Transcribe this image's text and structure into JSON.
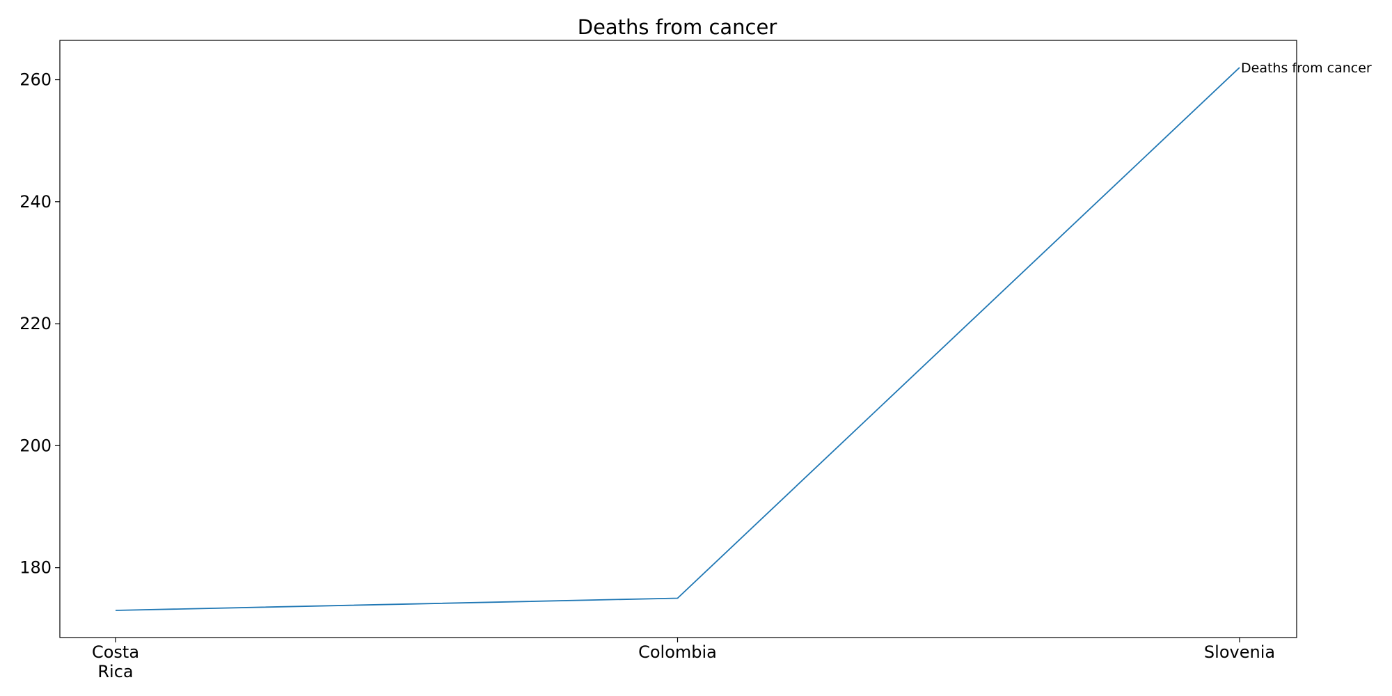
{
  "chart_data": {
    "type": "line",
    "title": "Deaths from cancer",
    "xlabel": "",
    "ylabel": "",
    "categories": [
      "Costa\nRica",
      "Colombia",
      "Slovenia"
    ],
    "series": [
      {
        "name": "Deaths from cancer",
        "values": [
          173,
          175,
          262
        ],
        "color": "#1f77b4"
      }
    ],
    "ylim": [
      168.55,
      266.45
    ],
    "yticks": [
      180,
      200,
      220,
      240,
      260
    ],
    "grid": false,
    "legend": "none"
  }
}
